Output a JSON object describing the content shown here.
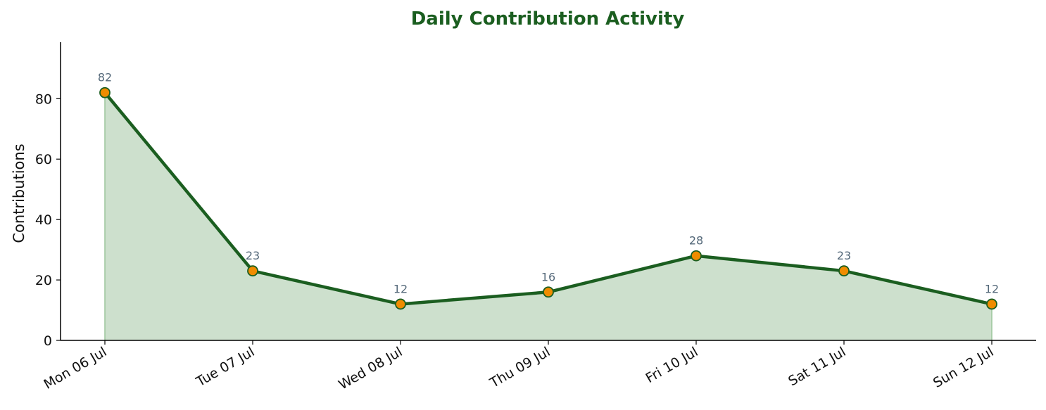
{
  "chart_data": {
    "type": "area",
    "title": "Daily Contribution Activity",
    "xlabel": "",
    "ylabel": "Contributions",
    "categories": [
      "Mon 06 Jul",
      "Tue 07 Jul",
      "Wed 08 Jul",
      "Thu 09 Jul",
      "Fri 10 Jul",
      "Sat 11 Jul",
      "Sun 12 Jul"
    ],
    "values": [
      82,
      23,
      12,
      16,
      28,
      23,
      12
    ],
    "ylim": [
      0,
      98.7
    ],
    "yticks": [
      0,
      20,
      40,
      60,
      80
    ],
    "grid": false,
    "legend": "none",
    "colors": {
      "title": "#1b5e20",
      "line": "#1b5e20",
      "fill": "#cde0cd",
      "fill_edge": "#9cc59c",
      "marker": "#f08c00",
      "marker_edge": "#1b5e20",
      "data_label": "#55697a"
    }
  }
}
